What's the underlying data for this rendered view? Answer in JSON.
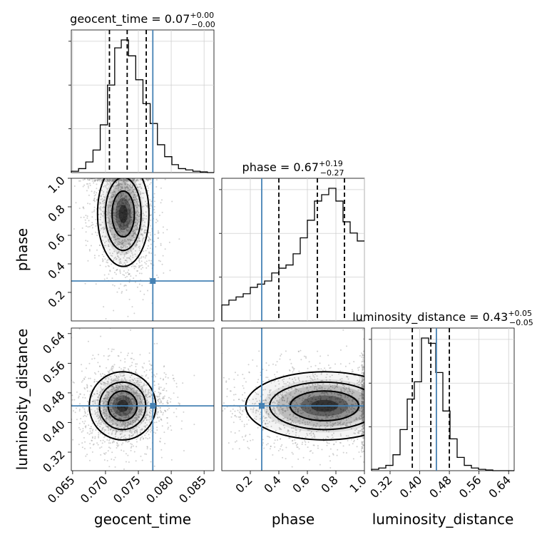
{
  "chart_data": {
    "type": "corner",
    "parameters": [
      "geocent_time",
      "phase",
      "luminosity_distance"
    ],
    "truth_color": "#4682b4",
    "titles": [
      {
        "param": "geocent_time",
        "lhs": "geocent_time = 0.07",
        "sup": "+0.00",
        "sub": "−0.00"
      },
      {
        "param": "phase",
        "lhs": "phase = 0.67",
        "sup": "+0.19",
        "sub": "−0.27"
      },
      {
        "param": "luminosity_distance",
        "lhs": "luminosity_distance = 0.43",
        "sup": "+0.05",
        "sub": "−0.05"
      }
    ],
    "axis_labels": {
      "geocent_time": "geocent_time",
      "phase": "phase",
      "luminosity_distance": "luminosity_distance"
    },
    "ranges": {
      "geocent_time": [
        0.0648,
        0.0865
      ],
      "phase": [
        0.0,
        1.0
      ],
      "luminosity_distance": [
        0.27,
        0.655
      ]
    },
    "ticks": {
      "geocent_time": [
        "0.065",
        "0.070",
        "0.075",
        "0.080",
        "0.085"
      ],
      "phase_x": [
        "0.2",
        "0.4",
        "0.6",
        "0.8",
        "1.0"
      ],
      "phase_y": [
        "0.2",
        "0.4",
        "0.6",
        "0.8",
        "1.0"
      ],
      "luminosity_distance": [
        "0.32",
        "0.40",
        "0.48",
        "0.56",
        "0.64"
      ]
    },
    "truths": {
      "geocent_time": 0.0772,
      "phase": 0.28,
      "luminosity_distance": 0.445
    },
    "quantiles": {
      "geocent_time": [
        0.0706,
        0.0733,
        0.0762
      ],
      "phase": [
        0.4,
        0.67,
        0.86
      ],
      "luminosity_distance": [
        0.38,
        0.43,
        0.48
      ]
    },
    "histograms": {
      "geocent_time": {
        "bin_edges": [
          0.0648,
          0.0659,
          0.067,
          0.0681,
          0.0692,
          0.0703,
          0.0714,
          0.0724,
          0.0735,
          0.0746,
          0.0757,
          0.0768,
          0.0779,
          0.079,
          0.0801,
          0.0811,
          0.0822,
          0.0833,
          0.0844,
          0.0855,
          0.0865
        ],
        "counts": [
          1,
          3,
          8,
          17,
          36,
          66,
          94,
          100,
          88,
          70,
          52,
          37,
          21,
          12,
          6,
          3,
          2,
          1,
          0.5,
          0
        ]
      },
      "phase": {
        "bin_edges": [
          0.0,
          0.05,
          0.1,
          0.15,
          0.2,
          0.25,
          0.3,
          0.35,
          0.4,
          0.45,
          0.5,
          0.55,
          0.6,
          0.65,
          0.7,
          0.75,
          0.8,
          0.85,
          0.9,
          0.95,
          1.0
        ],
        "counts": [
          10,
          13,
          15,
          17,
          21,
          23,
          25,
          30,
          33,
          35,
          42,
          52,
          63,
          75,
          79,
          83,
          75,
          62,
          55,
          50
        ]
      },
      "luminosity_distance": {
        "bin_edges": [
          0.27,
          0.2893,
          0.3085,
          0.3278,
          0.347,
          0.3663,
          0.3855,
          0.4048,
          0.424,
          0.4433,
          0.4625,
          0.4818,
          0.501,
          0.5203,
          0.5395,
          0.5588,
          0.578,
          0.5973,
          0.6165,
          0.6358,
          0.655
        ],
        "counts": [
          1,
          2,
          4,
          12,
          31,
          54,
          67,
          100,
          96,
          74,
          45,
          24,
          10,
          4,
          2,
          1,
          0.5,
          0,
          0,
          0
        ]
      }
    },
    "joint_peaks": {
      "phase_vs_geocent_time": {
        "x": 0.0727,
        "y": 0.75
      },
      "luminosity_distance_vs_geocent_time": {
        "x": 0.0726,
        "y": 0.445
      },
      "luminosity_distance_vs_phase": {
        "x": 0.72,
        "y": 0.445
      }
    }
  }
}
